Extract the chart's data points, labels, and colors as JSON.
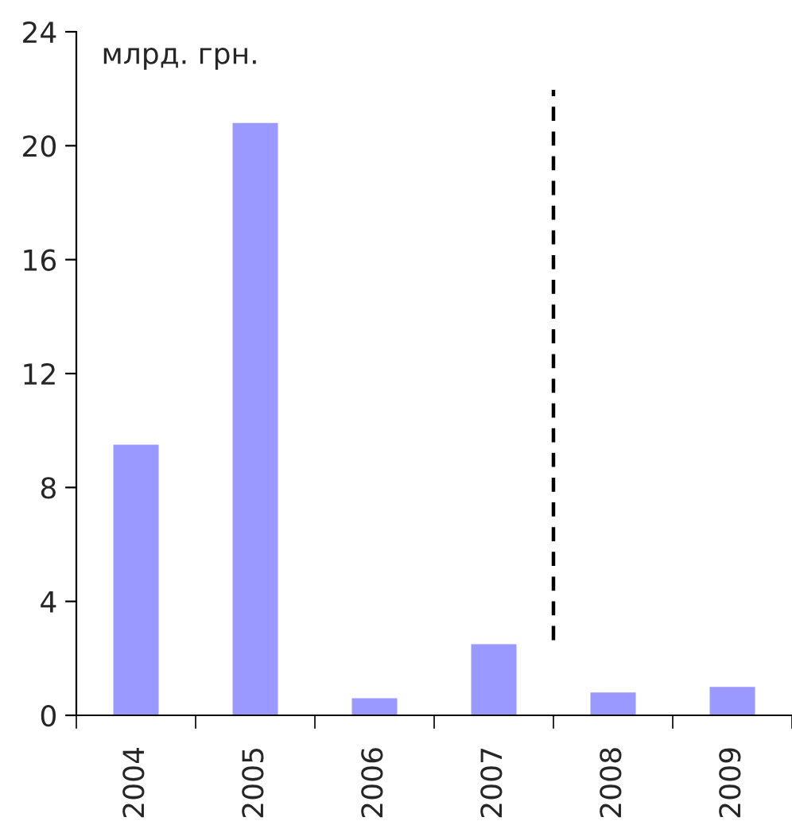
{
  "chart_data": {
    "type": "bar",
    "ylabel": "млрд. грн.",
    "categories": [
      "2004",
      "2005",
      "2006",
      "2007",
      "2008",
      "2009"
    ],
    "values": [
      9.5,
      20.8,
      0.6,
      2.5,
      0.8,
      1.0
    ],
    "color": "#9999ff",
    "ylim": [
      0,
      24
    ],
    "yticks": [
      0,
      4,
      8,
      12,
      16,
      20,
      24
    ],
    "grid": false,
    "legend": false
  }
}
